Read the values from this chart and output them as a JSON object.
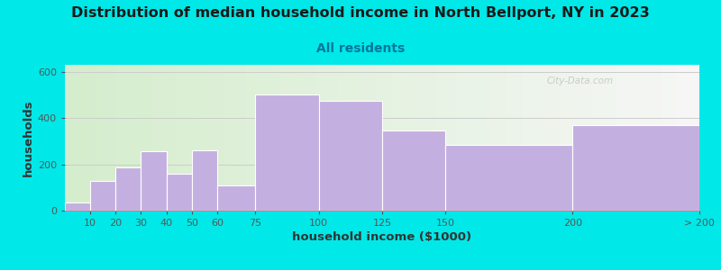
{
  "title": "Distribution of median household income in North Bellport, NY in 2023",
  "subtitle": "All residents",
  "xlabel": "household income ($1000)",
  "ylabel": "households",
  "title_fontsize": 11.5,
  "subtitle_fontsize": 10,
  "label_fontsize": 9.5,
  "bar_color": "#c4b0e0",
  "bar_edgecolor": "#ffffff",
  "background_outer": "#00e8e8",
  "ylim": [
    0,
    630
  ],
  "yticks": [
    0,
    200,
    400,
    600
  ],
  "tick_fontsize": 8,
  "grid_color": "#cccccc",
  "watermark": "City-Data.com",
  "title_color": "#1a1a1a",
  "subtitle_color": "#007799",
  "axis_label_color": "#333333",
  "tick_color": "#555555",
  "bin_edges": [
    0,
    10,
    20,
    30,
    40,
    50,
    60,
    75,
    100,
    125,
    150,
    200,
    250
  ],
  "bin_labels": [
    "10",
    "20",
    "30",
    "40",
    "50",
    "60",
    "75",
    "100",
    "125",
    "150",
    "200",
    "> 200"
  ],
  "values": [
    35,
    130,
    185,
    255,
    160,
    260,
    110,
    500,
    475,
    345,
    285,
    370
  ]
}
